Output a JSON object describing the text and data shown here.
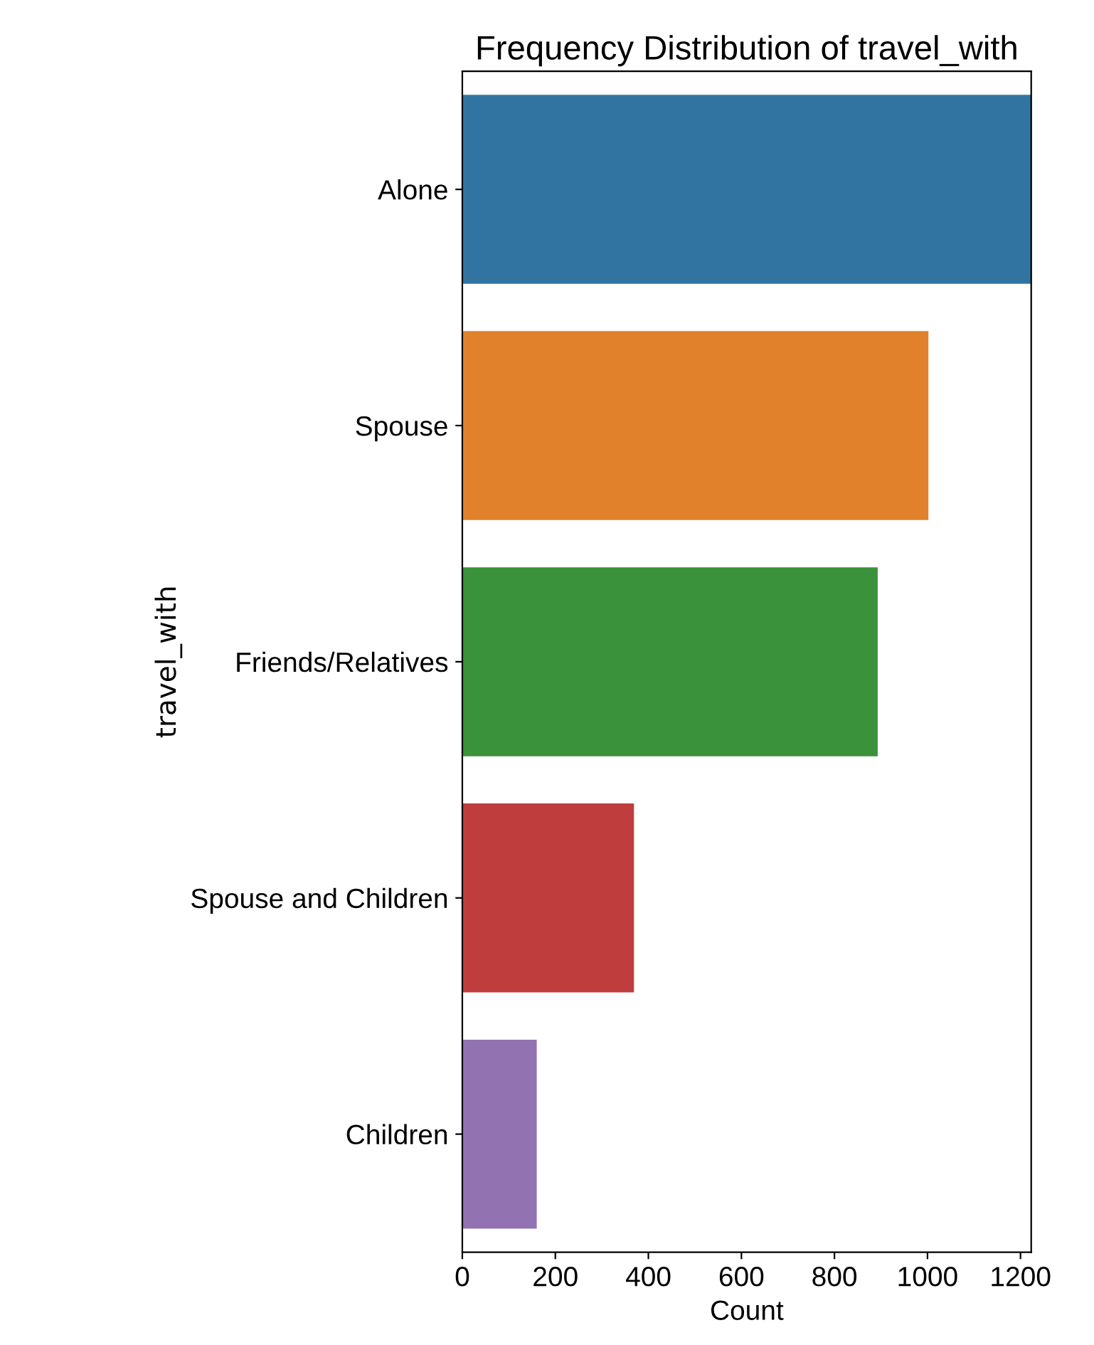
{
  "chart_data": {
    "type": "bar",
    "orientation": "horizontal",
    "title": "Frequency Distribution of travel_with",
    "xlabel": "Count",
    "ylabel": "travel_with",
    "categories": [
      "Alone",
      "Spouse",
      "Friends/Relatives",
      "Spouse and Children",
      "Children"
    ],
    "values": [
      1223,
      1002,
      893,
      369,
      160
    ],
    "colors": [
      "#3274a1",
      "#e1812c",
      "#3a923a",
      "#c03d3e",
      "#9372b2"
    ],
    "xlim": [
      0,
      1223
    ],
    "xticks": [
      0,
      200,
      400,
      600,
      800,
      1000,
      1200
    ],
    "grid": false,
    "legend": false
  }
}
